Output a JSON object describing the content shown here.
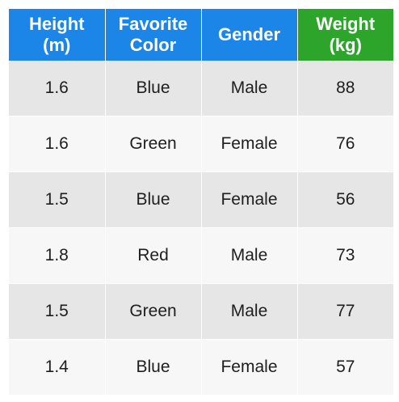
{
  "colors": {
    "header_feature_bg": "#1c86e8",
    "header_target_bg": "#2ca52a",
    "row_shaded_bg": "#e6e6e6",
    "row_plain_bg": "#f7f7f7",
    "header_text": "#ffffff",
    "cell_text": "#1e1e1e"
  },
  "table": {
    "headers": [
      {
        "line1": "Height",
        "line2": "(m)",
        "kind": "feature"
      },
      {
        "line1": "Favorite",
        "line2": "Color",
        "kind": "feature"
      },
      {
        "line1": "Gender",
        "line2": "",
        "kind": "feature"
      },
      {
        "line1": "Weight",
        "line2": "(kg)",
        "kind": "target"
      }
    ],
    "rows": [
      [
        "1.6",
        "Blue",
        "Male",
        "88"
      ],
      [
        "1.6",
        "Green",
        "Female",
        "76"
      ],
      [
        "1.5",
        "Blue",
        "Female",
        "56"
      ],
      [
        "1.8",
        "Red",
        "Male",
        "73"
      ],
      [
        "1.5",
        "Green",
        "Male",
        "77"
      ],
      [
        "1.4",
        "Blue",
        "Female",
        "57"
      ]
    ]
  }
}
